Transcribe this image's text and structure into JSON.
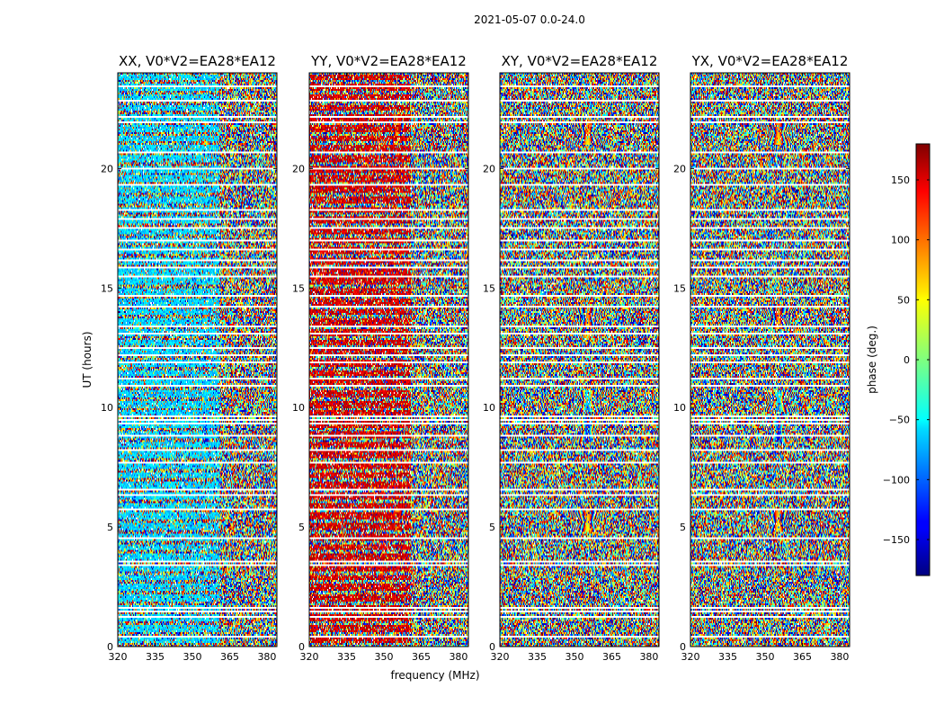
{
  "chart_data": {
    "type": "heatmap",
    "suptitle": "2021-05-07 0.0-24.0",
    "xlabel": "frequency (MHz)",
    "ylabel": "UT (hours)",
    "xlim": [
      320,
      384
    ],
    "ylim": [
      0,
      24
    ],
    "xticks": [
      320,
      335,
      350,
      365,
      380
    ],
    "yticks": [
      0,
      5,
      10,
      15,
      20
    ],
    "panels": [
      {
        "title": "XX, V0*V2=EA28*EA12",
        "pol": "XX",
        "base_phase": -60,
        "seed": 11
      },
      {
        "title": "YY, V0*V2=EA28*EA12",
        "pol": "YY",
        "base_phase": 150,
        "seed": 23
      },
      {
        "title": "XY, V0*V2=EA28*EA12",
        "pol": "XY",
        "base_phase": null,
        "seed": 37
      },
      {
        "title": "YX, V0*V2=EA28*EA12",
        "pol": "YX",
        "base_phase": null,
        "seed": 53
      }
    ],
    "colorbar": {
      "label": "phase (deg.)",
      "range": [
        -180,
        180
      ],
      "ticks": [
        150,
        100,
        50,
        0,
        -50,
        -100,
        -150
      ],
      "tick_labels": [
        "150",
        "100",
        "50",
        "0",
        "−50",
        "−100",
        "−150"
      ],
      "colormap": "jet"
    },
    "flagged_ut_hours": [
      0.35,
      1.2,
      1.45,
      1.55,
      3.4,
      3.55,
      4.55,
      5.75,
      6.35,
      6.55,
      7.7,
      8.2,
      8.8,
      9.3,
      9.5,
      9.6,
      10.9,
      11.2,
      11.9,
      12.2,
      12.5,
      13.1,
      13.4,
      14.2,
      14.7,
      15.5,
      15.9,
      16.2,
      16.6,
      17.0,
      17.5,
      17.9,
      18.3,
      19.3,
      20.0,
      20.7,
      22.0,
      22.2,
      22.9,
      23.5
    ],
    "fringe_features_ut_hours": [
      5.2,
      9.0,
      10.3,
      13.7,
      21.5
    ]
  }
}
